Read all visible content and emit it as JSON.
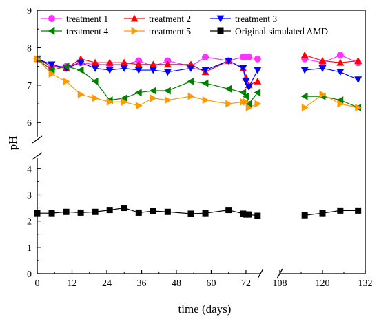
{
  "chart_data": {
    "type": "line",
    "xlabel": "time (days)",
    "ylabel": "pH",
    "x_axis_break": {
      "from": 77,
      "to": 108
    },
    "y_axis_break": {
      "from": 4.4,
      "to": 5.6
    },
    "xlim": [
      0,
      132
    ],
    "ylim": [
      0,
      9
    ],
    "xticks": [
      0,
      12,
      24,
      36,
      48,
      60,
      72,
      108,
      120,
      132
    ],
    "yticks": [
      0,
      1,
      2,
      3,
      4,
      6,
      7,
      8,
      9
    ],
    "ytick_labels": [
      "0",
      "1",
      "2",
      "3",
      "4",
      "6",
      "7",
      "8",
      "9"
    ],
    "legend": {
      "placement": "top",
      "columns": 3
    },
    "series": [
      {
        "name": "treatment 1",
        "color": "#ff33ff",
        "marker": "circle",
        "x": [
          0,
          5,
          10,
          15,
          20,
          25,
          30,
          35,
          40,
          45,
          53,
          58,
          66,
          71,
          72,
          73,
          76,
          115,
          120,
          125,
          130
        ],
        "y": [
          7.7,
          7.5,
          7.5,
          7.6,
          7.55,
          7.55,
          7.55,
          7.65,
          7.5,
          7.65,
          7.5,
          7.75,
          7.65,
          7.75,
          7.75,
          7.75,
          7.7,
          7.7,
          7.6,
          7.8,
          7.6
        ]
      },
      {
        "name": "treatment 2",
        "color": "#ff0000",
        "marker": "triangle-up",
        "x": [
          0,
          5,
          10,
          15,
          20,
          25,
          30,
          35,
          40,
          45,
          53,
          58,
          66,
          71,
          72,
          73,
          76,
          115,
          120,
          125,
          130
        ],
        "y": [
          7.7,
          7.5,
          7.45,
          7.7,
          7.6,
          7.6,
          7.6,
          7.55,
          7.55,
          7.55,
          7.55,
          7.35,
          7.65,
          7.45,
          7.2,
          7.0,
          7.1,
          7.8,
          7.65,
          7.6,
          7.65
        ]
      },
      {
        "name": "treatment 3",
        "color": "#0000ff",
        "marker": "triangle-down",
        "x": [
          0,
          5,
          10,
          15,
          20,
          25,
          30,
          35,
          40,
          45,
          53,
          58,
          66,
          71,
          72,
          73,
          76,
          115,
          120,
          125,
          130
        ],
        "y": [
          7.7,
          7.55,
          7.45,
          7.6,
          7.45,
          7.4,
          7.45,
          7.4,
          7.4,
          7.35,
          7.45,
          7.4,
          7.65,
          7.45,
          7.1,
          6.95,
          7.4,
          7.4,
          7.45,
          7.35,
          7.15
        ]
      },
      {
        "name": "treatment 4",
        "color": "#008000",
        "marker": "triangle-left",
        "x": [
          0,
          5,
          10,
          15,
          20,
          25,
          30,
          35,
          40,
          45,
          53,
          58,
          66,
          71,
          72,
          73,
          76,
          115,
          120,
          125,
          130
        ],
        "y": [
          7.7,
          7.4,
          7.5,
          7.4,
          7.1,
          6.6,
          6.65,
          6.8,
          6.85,
          6.85,
          7.1,
          7.05,
          6.9,
          6.8,
          6.7,
          6.5,
          6.8,
          6.7,
          6.7,
          6.6,
          6.4
        ]
      },
      {
        "name": "treatment 5",
        "color": "#ff9900",
        "marker": "triangle-right",
        "x": [
          0,
          5,
          10,
          15,
          20,
          25,
          30,
          35,
          40,
          45,
          53,
          58,
          66,
          71,
          72,
          73,
          76,
          115,
          120,
          125,
          130
        ],
        "y": [
          7.7,
          7.3,
          7.1,
          6.75,
          6.65,
          6.55,
          6.55,
          6.45,
          6.65,
          6.6,
          6.7,
          6.6,
          6.5,
          6.55,
          6.55,
          6.4,
          6.5,
          6.4,
          6.75,
          6.5,
          6.4
        ]
      },
      {
        "name": "Original simulated AMD",
        "color": "#000000",
        "marker": "square",
        "x": [
          0,
          5,
          10,
          15,
          20,
          25,
          30,
          35,
          40,
          45,
          53,
          58,
          66,
          71,
          72,
          73,
          76,
          115,
          120,
          125,
          130
        ],
        "y": [
          2.3,
          2.3,
          2.35,
          2.32,
          2.35,
          2.42,
          2.5,
          2.32,
          2.38,
          2.35,
          2.28,
          2.3,
          2.42,
          2.28,
          2.25,
          2.25,
          2.2,
          2.22,
          2.3,
          2.4,
          2.4
        ]
      }
    ]
  }
}
